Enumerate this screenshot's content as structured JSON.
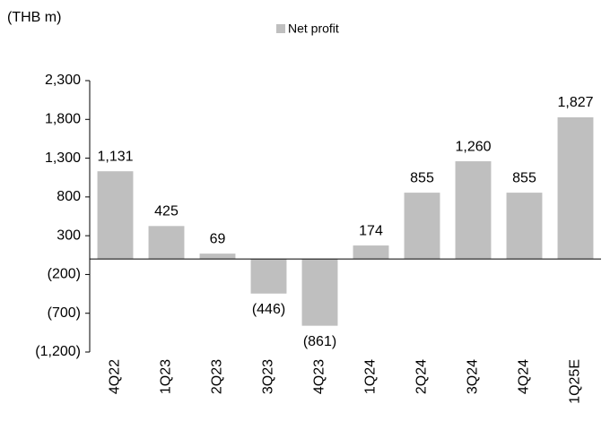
{
  "chart_data": {
    "type": "bar",
    "y_label": "(THB m)",
    "categories": [
      "4Q22",
      "1Q23",
      "2Q23",
      "3Q23",
      "4Q23",
      "1Q24",
      "2Q24",
      "3Q24",
      "4Q24",
      "1Q25E"
    ],
    "series": [
      {
        "name": "Net profit",
        "color": "#bfbfbf",
        "values": [
          1131,
          425,
          69,
          -446,
          -861,
          174,
          855,
          1260,
          855,
          1827
        ],
        "value_labels": [
          "1,131",
          "425",
          "69",
          "(446)",
          "(861)",
          "174",
          "855",
          "1,260",
          "855",
          "1,827"
        ]
      }
    ],
    "ylim": [
      -1200,
      2300
    ],
    "yticks": [
      {
        "value": -1200,
        "label": "(1,200)"
      },
      {
        "value": -700,
        "label": "(700)"
      },
      {
        "value": -200,
        "label": "(200)"
      },
      300,
      800,
      {
        "value": 1300,
        "label": "1,300"
      },
      {
        "value": 1800,
        "label": "1,800"
      },
      {
        "value": 2300,
        "label": "2,300"
      }
    ],
    "legend": "top"
  }
}
